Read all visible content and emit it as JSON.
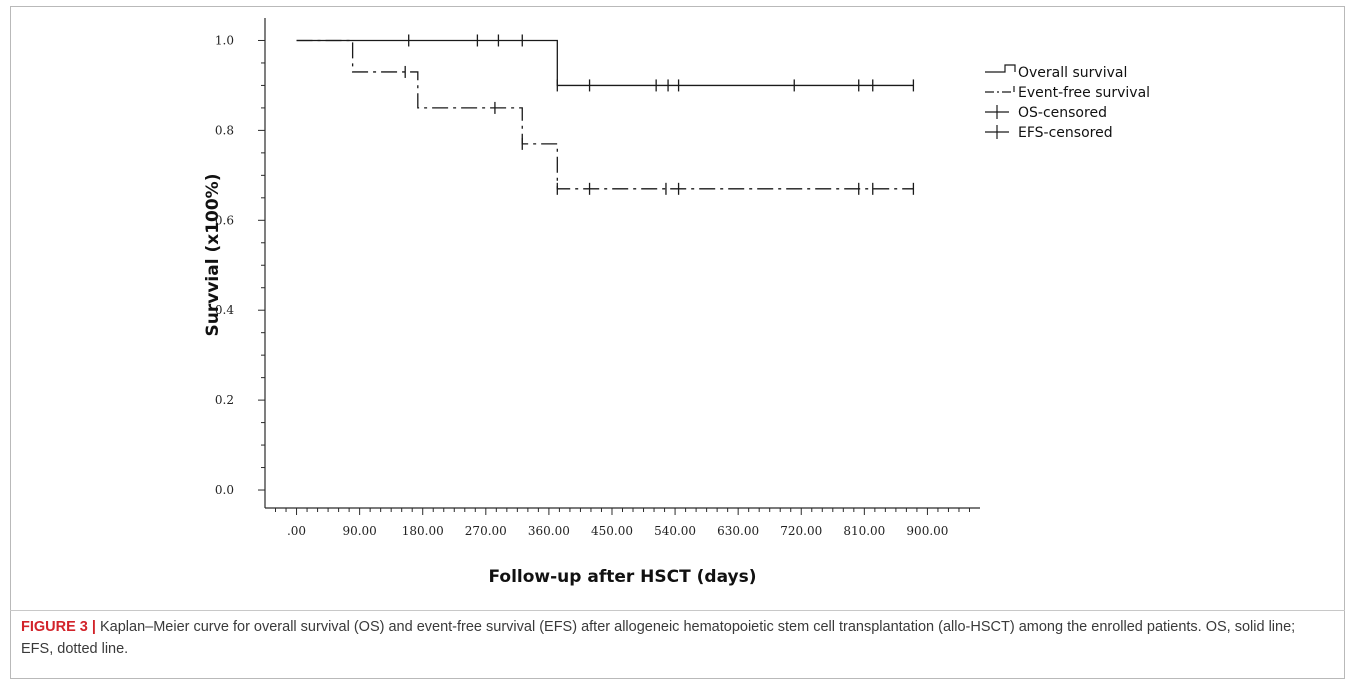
{
  "chart_data": {
    "type": "line",
    "xlabel": "Follow-up after HSCT (days)",
    "ylabel": "Survvial (x100%)",
    "x_ticks": [
      ".00",
      "90.00",
      "180.00",
      "270.00",
      "360.00",
      "450.00",
      "540.00",
      "630.00",
      "720.00",
      "810.00",
      "900.00"
    ],
    "y_ticks": [
      "0.0",
      "0.2",
      "0.4",
      "0.6",
      "0.8",
      "1.0"
    ],
    "xlim": [
      -45,
      975
    ],
    "ylim": [
      -0.04,
      1.05
    ],
    "series": [
      {
        "name": "Overall survival",
        "style": "solid",
        "steps": [
          [
            0,
            1.0
          ],
          [
            372,
            0.9
          ],
          [
            880,
            0.9
          ]
        ],
        "censored": [
          [
            160,
            1.0
          ],
          [
            258,
            1.0
          ],
          [
            288,
            1.0
          ],
          [
            322,
            1.0
          ],
          [
            372,
            0.9
          ],
          [
            418,
            0.9
          ],
          [
            513,
            0.9
          ],
          [
            530,
            0.9
          ],
          [
            545,
            0.9
          ],
          [
            710,
            0.9
          ],
          [
            802,
            0.9
          ],
          [
            822,
            0.9
          ],
          [
            880,
            0.9
          ]
        ]
      },
      {
        "name": "Event-free survival",
        "style": "dashdot",
        "steps": [
          [
            0,
            1.0
          ],
          [
            80,
            0.93
          ],
          [
            173,
            0.85
          ],
          [
            322,
            0.77
          ],
          [
            372,
            0.67
          ],
          [
            880,
            0.67
          ]
        ],
        "censored": [
          [
            155,
            0.93
          ],
          [
            283,
            0.85
          ],
          [
            322,
            0.77
          ],
          [
            372,
            0.67
          ],
          [
            418,
            0.67
          ],
          [
            527,
            0.67
          ],
          [
            545,
            0.67
          ],
          [
            802,
            0.67
          ],
          [
            822,
            0.67
          ],
          [
            880,
            0.67
          ]
        ]
      }
    ],
    "legend": {
      "placement": "top-right",
      "entries": [
        "Overall survival",
        "Event-free survival",
        "OS-censored",
        "EFS-censored"
      ]
    },
    "grid": false
  },
  "caption": {
    "label": "FIGURE 3 |",
    "text": " Kaplan–Meier curve for overall survival (OS) and event-free survival (EFS) after allogeneic hematopoietic stem cell transplantation (allo-HSCT) among the enrolled patients. OS, solid line; EFS, dotted line."
  }
}
